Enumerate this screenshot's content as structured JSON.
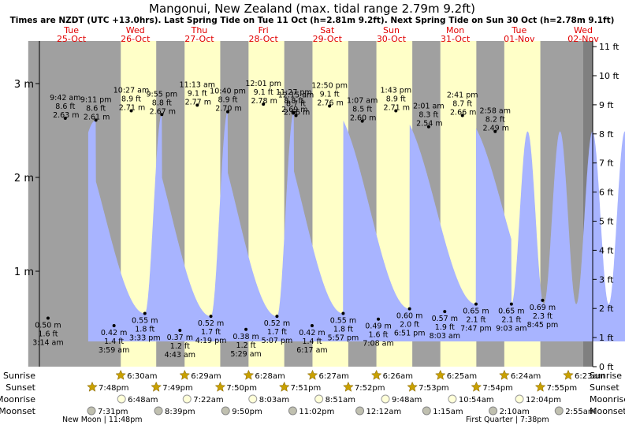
{
  "title": "Mangonui, New Zealand (max. tidal range 2.79m 9.2ft)",
  "subtitle": "Times are NZDT (UTC +13.0hrs). Last Spring Tide on Tue 11 Oct (h=2.81m 9.2ft). Next Spring Tide on Sun 30 Oct (h=2.78m 9.1ft)",
  "colors": {
    "day": "#ffffc8",
    "night": "#a0a0a0",
    "tide": "#a8b4ff",
    "right_strip": "#808080",
    "day_label": "#e00000",
    "sun_icon": "#c8a000",
    "moon_icon": "#d0d0b0"
  },
  "days": [
    {
      "name": "Tue",
      "date": "25-Oct"
    },
    {
      "name": "Wed",
      "date": "26-Oct"
    },
    {
      "name": "Thu",
      "date": "27-Oct"
    },
    {
      "name": "Fri",
      "date": "28-Oct"
    },
    {
      "name": "Sat",
      "date": "29-Oct"
    },
    {
      "name": "Sun",
      "date": "30-Oct"
    },
    {
      "name": "Mon",
      "date": "31-Oct"
    },
    {
      "name": "Tue",
      "date": "01-Nov"
    },
    {
      "name": "Wed",
      "date": "02-Nov"
    }
  ],
  "chart_data": {
    "type": "area",
    "x_start": "2022-10-25 00:00",
    "x_end": "2022-11-02 12:00",
    "ylim_m": [
      0,
      3.45
    ],
    "ylim_ft": [
      0,
      11
    ],
    "y_ticks_m": [
      "1 m",
      "2 m",
      "3 m"
    ],
    "y_ticks_ft": [
      "0 ft",
      "1 ft",
      "2 ft",
      "3 ft",
      "4 ft",
      "5 ft",
      "6 ft",
      "7 ft",
      "8 ft",
      "9 ft",
      "10 ft",
      "11 ft"
    ],
    "high_tides": [
      {
        "time": "9:11 pm",
        "ft": "8.6 ft",
        "m": "2.61 m",
        "h": 2.61
      },
      {
        "time": "9:42 am",
        "ft": "8.6 ft",
        "m": "2.63 m",
        "h": 2.63
      },
      {
        "time": "9:55 pm",
        "ft": "8.8 ft",
        "m": "2.67 m",
        "h": 2.67
      },
      {
        "time": "10:27 am",
        "ft": "8.9 ft",
        "m": "2.71 m",
        "h": 2.71
      },
      {
        "time": "10:40 pm",
        "ft": "8.9 ft",
        "m": "2.70 m",
        "h": 2.7
      },
      {
        "time": "11:13 am",
        "ft": "9.1 ft",
        "m": "2.77 m",
        "h": 2.77
      },
      {
        "time": "11:27 pm",
        "ft": "8.8 ft",
        "m": "2.69 m",
        "h": 2.69
      },
      {
        "time": "12:01 pm",
        "ft": "9.1 ft",
        "m": "2.78 m",
        "h": 2.78
      },
      {
        "time": "12:15 am",
        "ft": "8.7 ft",
        "m": "2.66 m",
        "h": 2.66
      },
      {
        "time": "12:50 pm",
        "ft": "9.1 ft",
        "m": "2.76 m",
        "h": 2.76
      },
      {
        "time": "1:07 am",
        "ft": "8.5 ft",
        "m": "2.60 m",
        "h": 2.6
      },
      {
        "time": "1:43 pm",
        "ft": "8.9 ft",
        "m": "2.71 m",
        "h": 2.71
      },
      {
        "time": "2:01 am",
        "ft": "8.3 ft",
        "m": "2.54 m",
        "h": 2.54
      },
      {
        "time": "2:41 pm",
        "ft": "8.7 ft",
        "m": "2.66 m",
        "h": 2.66
      },
      {
        "time": "2:58 am",
        "ft": "8.2 ft",
        "m": "2.49 m",
        "h": 2.49
      }
    ],
    "low_tides": [
      {
        "time": "3:14 am",
        "ft": "1.6 ft",
        "m": "0.50 m",
        "h": 0.5
      },
      {
        "time": "3:33 pm",
        "ft": "1.8 ft",
        "m": "0.55 m",
        "h": 0.55
      },
      {
        "time": "3:59 am",
        "ft": "1.4 ft",
        "m": "0.42 m",
        "h": 0.42
      },
      {
        "time": "4:19 pm",
        "ft": "1.7 ft",
        "m": "0.52 m",
        "h": 0.52
      },
      {
        "time": "4:43 am",
        "ft": "1.2 ft",
        "m": "0.37 m",
        "h": 0.37
      },
      {
        "time": "5:07 pm",
        "ft": "1.7 ft",
        "m": "0.52 m",
        "h": 0.52
      },
      {
        "time": "5:29 am",
        "ft": "1.2 ft",
        "m": "0.38 m",
        "h": 0.38
      },
      {
        "time": "5:57 pm",
        "ft": "1.8 ft",
        "m": "0.55 m",
        "h": 0.55
      },
      {
        "time": "6:17 am",
        "ft": "1.4 ft",
        "m": "0.42 m",
        "h": 0.42
      },
      {
        "time": "6:51 pm",
        "ft": "2.0 ft",
        "m": "0.60 m",
        "h": 0.6
      },
      {
        "time": "7:08 am",
        "ft": "1.6 ft",
        "m": "0.49 m",
        "h": 0.49
      },
      {
        "time": "7:47 pm",
        "ft": "2.1 ft",
        "m": "0.65 m",
        "h": 0.65
      },
      {
        "time": "8:03 am",
        "ft": "1.9 ft",
        "m": "0.57 m",
        "h": 0.57
      },
      {
        "time": "8:45 pm",
        "ft": "2.3 ft",
        "m": "0.69 m",
        "h": 0.69
      },
      {
        "time": "9:03 am",
        "ft": "2.1 ft",
        "m": "0.65 m",
        "h": 0.65
      }
    ]
  },
  "astro_labels": [
    "Sunrise",
    "Sunset",
    "Moonrise",
    "Moonset"
  ],
  "sunrise": [
    "6:30am",
    "6:29am",
    "6:28am",
    "6:27am",
    "6:26am",
    "6:25am",
    "6:24am",
    "6:23am"
  ],
  "sunset": [
    "7:48pm",
    "7:49pm",
    "7:50pm",
    "7:51pm",
    "7:52pm",
    "7:53pm",
    "7:54pm",
    "7:55pm"
  ],
  "moonrise": [
    "6:48am",
    "7:22am",
    "8:03am",
    "8:51am",
    "9:48am",
    "10:54am",
    "12:04pm"
  ],
  "moonset": [
    "7:31pm",
    "8:39pm",
    "9:50pm",
    "11:02pm",
    "12:12am",
    "1:15am",
    "2:10am",
    "2:55am"
  ],
  "moon_phases": [
    "New Moon | 11:48pm",
    "First Quarter | 7:38pm"
  ]
}
